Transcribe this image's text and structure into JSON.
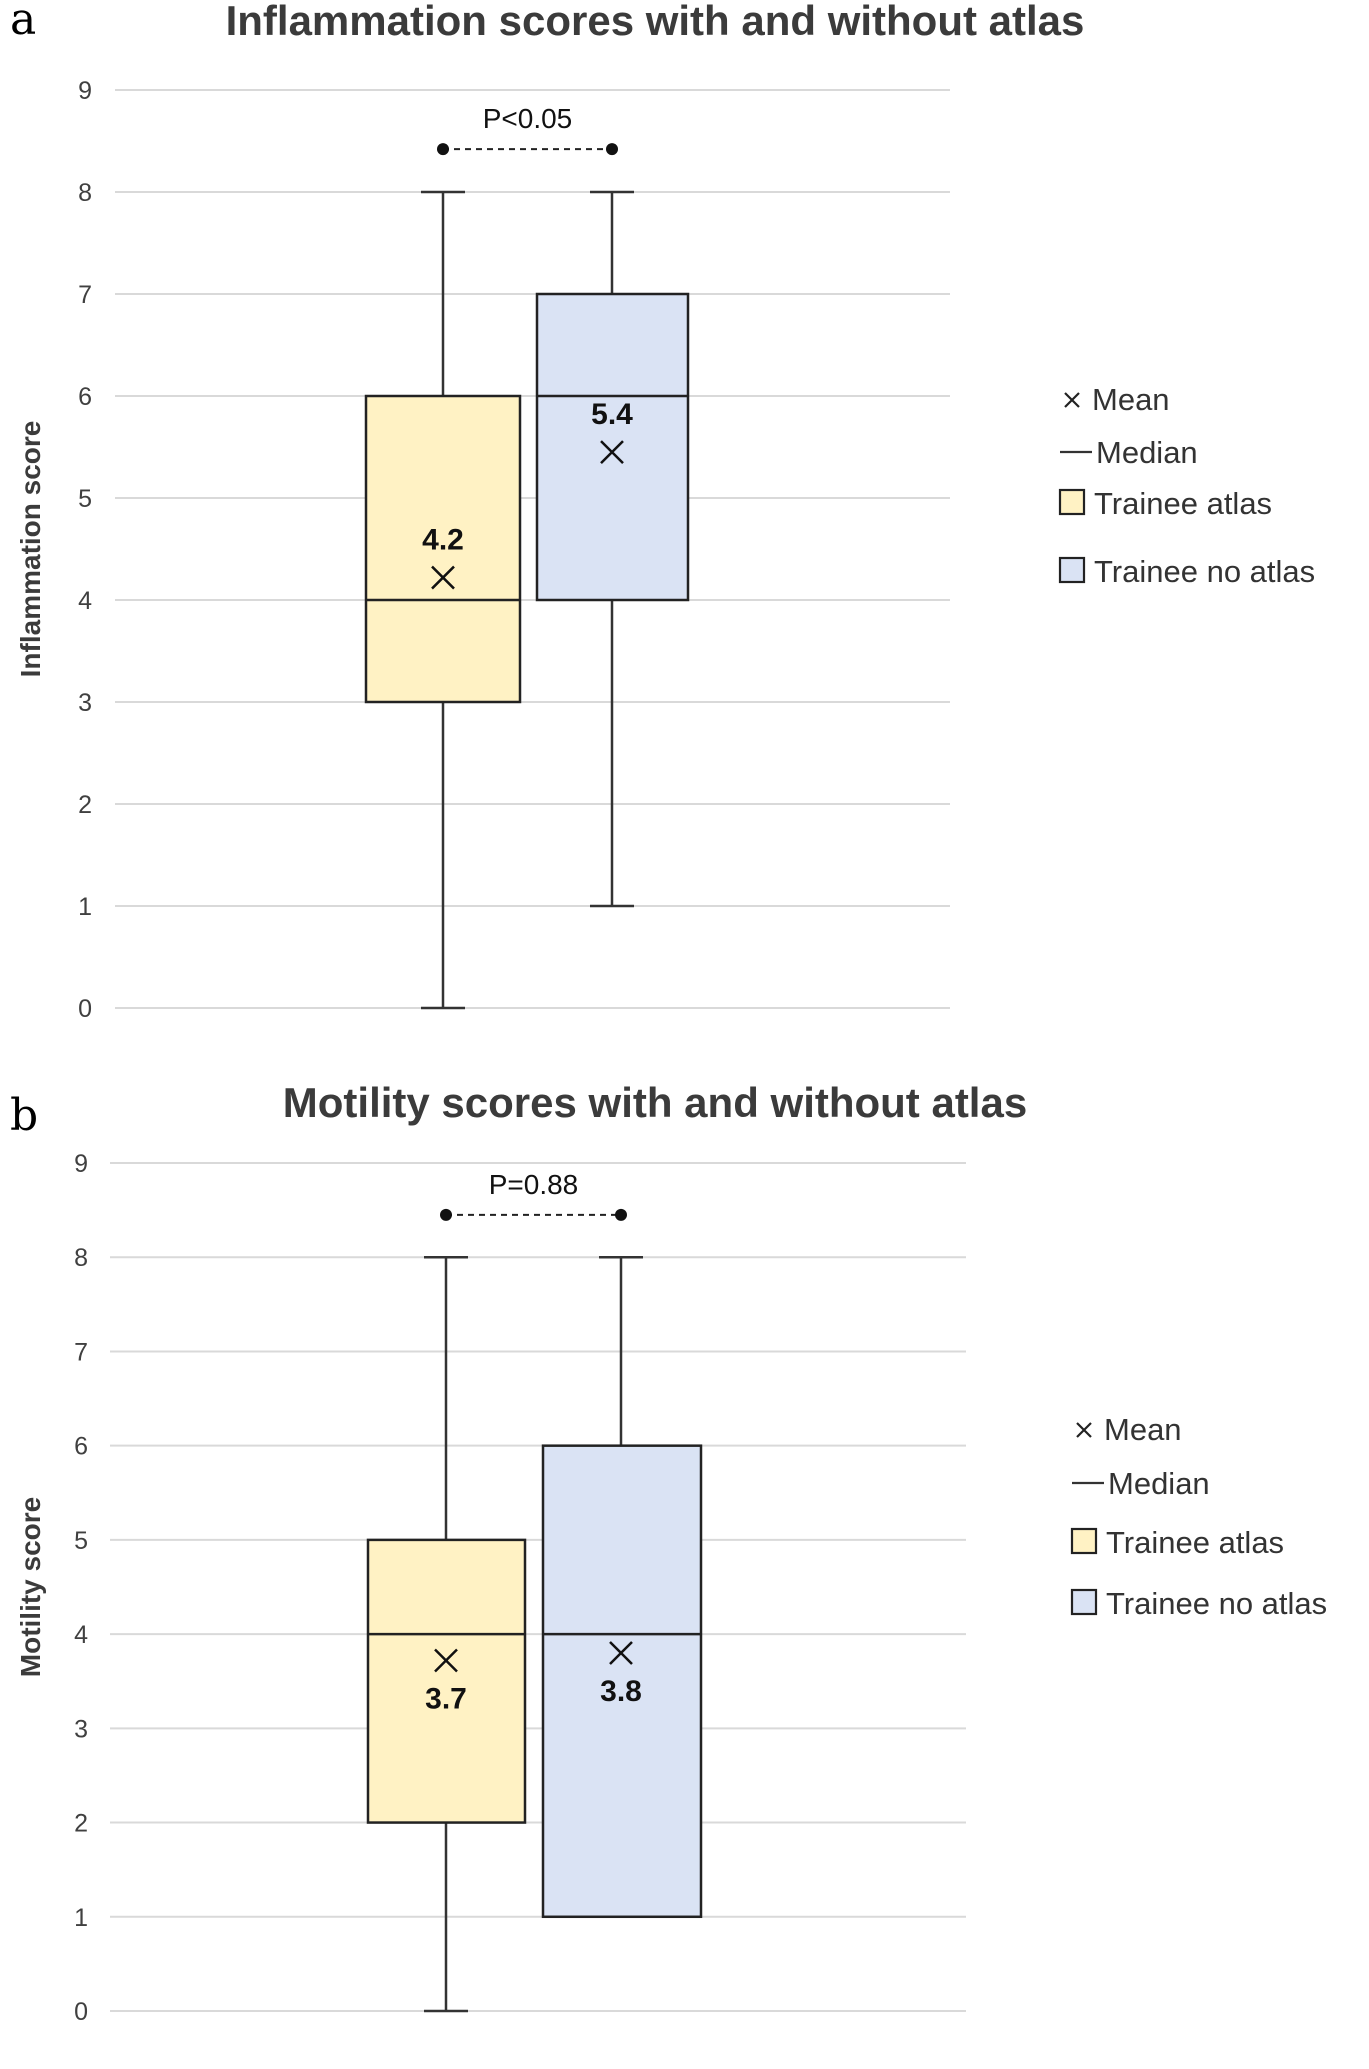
{
  "chart_data": [
    {
      "panel": "a",
      "type": "box",
      "title": "Inflammation scores with and without atlas",
      "ylabel": "Inflammation score",
      "xlabel": "",
      "ylim": [
        0,
        9
      ],
      "yticks": [
        "0",
        "1",
        "2",
        "3",
        "4",
        "5",
        "6",
        "7",
        "8",
        "9"
      ],
      "grid": true,
      "legend_position": "right",
      "series": [
        {
          "name": "Trainee atlas",
          "color": "#fff2c4",
          "min": 0,
          "q1": 3,
          "median": 4,
          "q3": 6,
          "max": 8,
          "mean": 4.22,
          "mean_label": "4.2"
        },
        {
          "name": "Trainee no atlas",
          "color": "#dae3f4",
          "min": 1,
          "q1": 4,
          "median": 6,
          "q3": 7,
          "max": 8,
          "mean": 5.45,
          "mean_label": "5.4"
        }
      ],
      "significance": {
        "label": "P<0.05",
        "y": 8.42
      },
      "legend": {
        "mean": "Mean",
        "median": "Median"
      }
    },
    {
      "panel": "b",
      "type": "box",
      "title": "Motility scores with and without atlas",
      "ylabel": "Motility score",
      "xlabel": "",
      "ylim": [
        0,
        9
      ],
      "yticks": [
        "0",
        "1",
        "2",
        "3",
        "4",
        "5",
        "6",
        "7",
        "8",
        "9"
      ],
      "grid": true,
      "legend_position": "right",
      "series": [
        {
          "name": "Trainee atlas",
          "color": "#fff2c4",
          "min": 0,
          "q1": 2,
          "median": 4,
          "q3": 5,
          "max": 8,
          "mean": 3.72,
          "mean_label": "3.7"
        },
        {
          "name": "Trainee no atlas",
          "color": "#dae3f4",
          "min": 1,
          "q1": 1,
          "median": 4,
          "q3": 6,
          "max": 8,
          "mean": 3.8,
          "mean_label": "3.8"
        }
      ],
      "significance": {
        "label": "P=0.88",
        "y": 8.45
      },
      "legend": {
        "mean": "Mean",
        "median": "Median"
      }
    }
  ]
}
